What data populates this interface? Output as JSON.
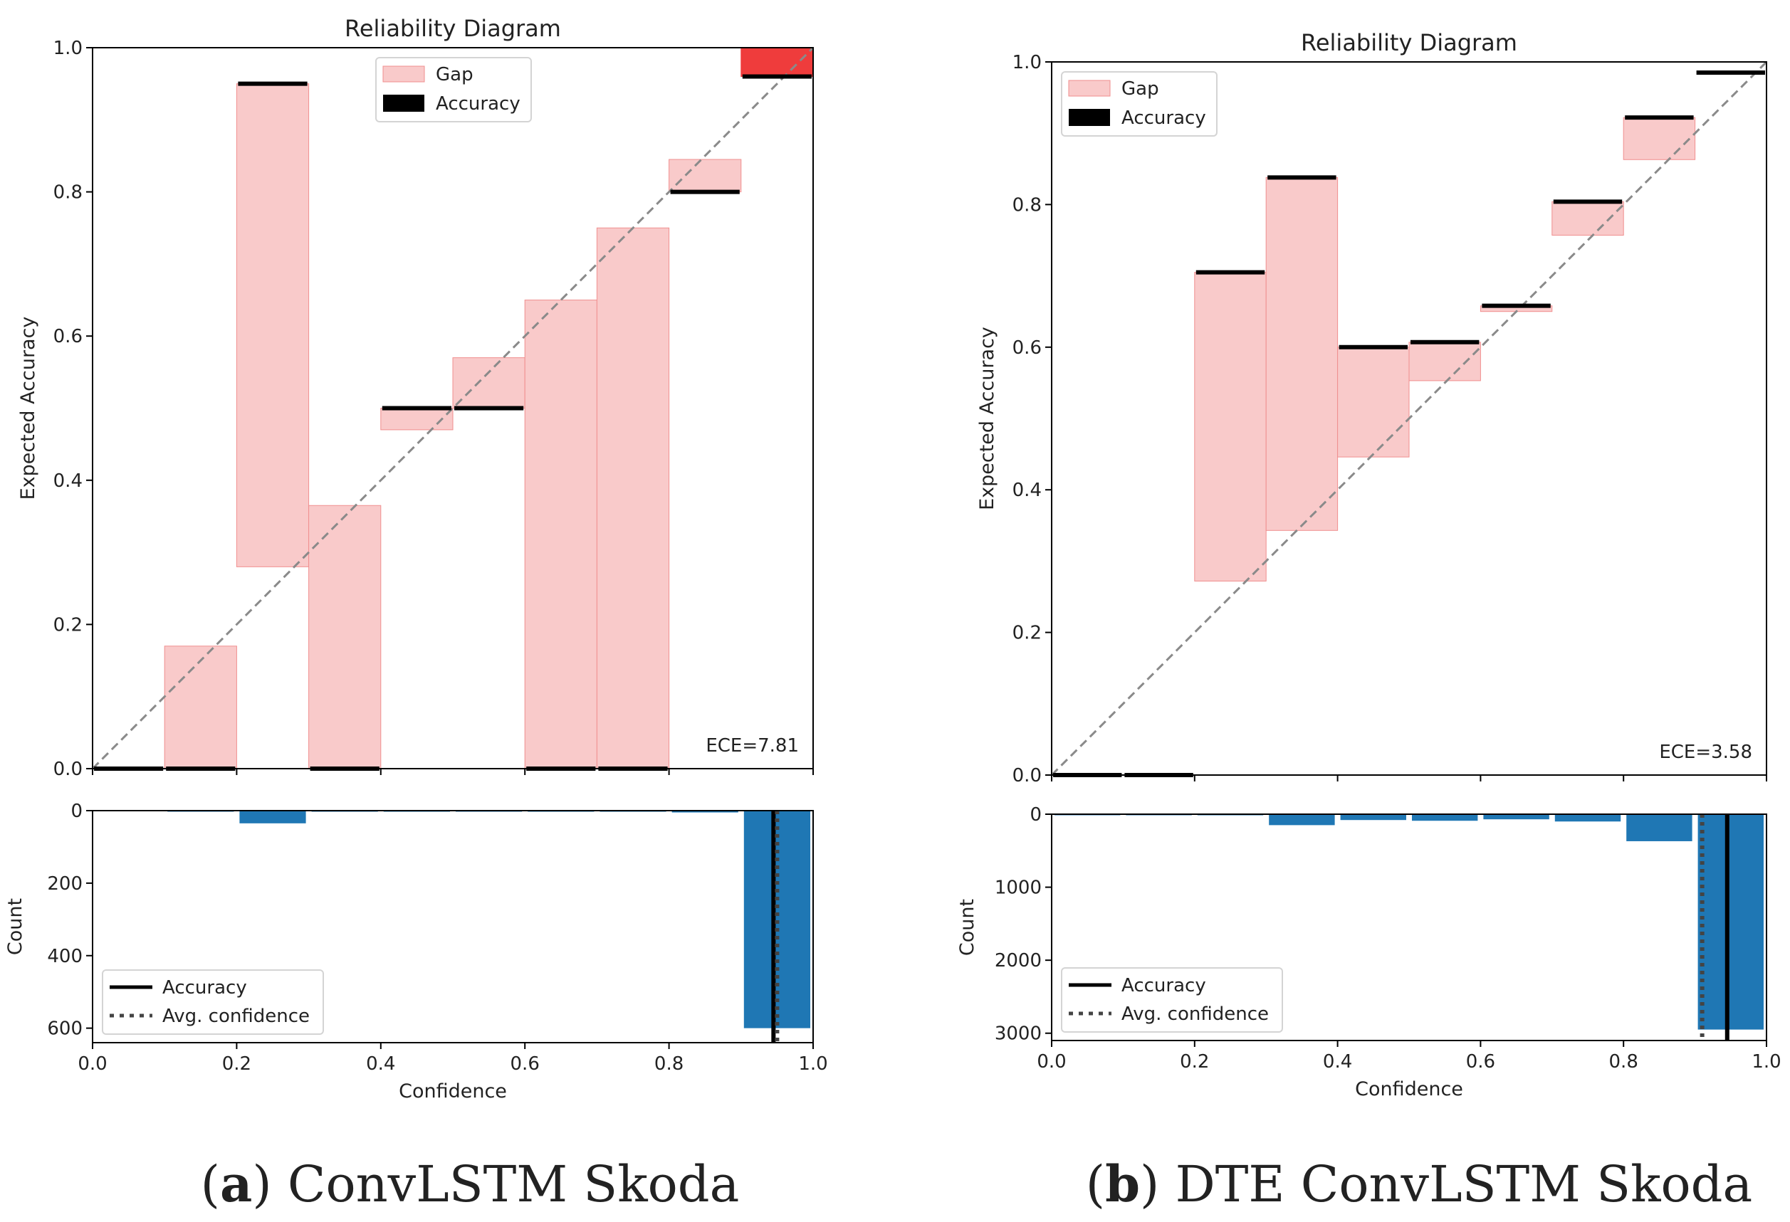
{
  "chart_data": [
    {
      "id": "a",
      "type": "bar",
      "reliability": {
        "title": "Reliability Diagram",
        "xlabel": "",
        "ylabel": "Expected Accuracy",
        "xlim": [
          0.0,
          1.0
        ],
        "ylim": [
          0.0,
          1.0
        ],
        "yticks": [
          "0.0",
          "0.2",
          "0.4",
          "0.6",
          "0.8",
          "1.0"
        ],
        "bins": [
          {
            "x0": 0.0,
            "x1": 0.1,
            "accuracy": 0.0,
            "avg_conf": 0.0
          },
          {
            "x0": 0.1,
            "x1": 0.2,
            "accuracy": 0.0,
            "avg_conf": 0.17
          },
          {
            "x0": 0.2,
            "x1": 0.3,
            "accuracy": 0.95,
            "avg_conf": 0.28
          },
          {
            "x0": 0.3,
            "x1": 0.4,
            "accuracy": 0.0,
            "avg_conf": 0.365
          },
          {
            "x0": 0.4,
            "x1": 0.5,
            "accuracy": 0.5,
            "avg_conf": 0.47
          },
          {
            "x0": 0.5,
            "x1": 0.6,
            "accuracy": 0.5,
            "avg_conf": 0.57
          },
          {
            "x0": 0.6,
            "x1": 0.7,
            "accuracy": 0.0,
            "avg_conf": 0.65
          },
          {
            "x0": 0.7,
            "x1": 0.8,
            "accuracy": 0.0,
            "avg_conf": 0.75
          },
          {
            "x0": 0.8,
            "x1": 0.9,
            "accuracy": 0.8,
            "avg_conf": 0.845
          },
          {
            "x0": 0.9,
            "x1": 1.0,
            "accuracy": 0.96,
            "avg_conf": 1.0,
            "highlight": true
          }
        ],
        "legend": {
          "position": "top-center",
          "gap": "Gap",
          "accuracy": "Accuracy"
        },
        "ece_label": "ECE=7.81"
      },
      "histogram": {
        "xlabel": "Confidence",
        "ylabel": "Count",
        "xticks": [
          "0.0",
          "0.2",
          "0.4",
          "0.6",
          "0.8",
          "1.0"
        ],
        "yticks": [
          "0",
          "200",
          "400",
          "600"
        ],
        "ytick_values": [
          0,
          200,
          400,
          600
        ],
        "ylim": [
          0,
          640
        ],
        "counts": [
          0,
          2,
          35,
          2,
          3,
          2,
          3,
          3,
          5,
          600
        ],
        "accuracy_line": 0.945,
        "avg_conf_line": 0.95,
        "legend": {
          "position": "lower-left",
          "accuracy": "Accuracy",
          "avg_conf": "Avg. confidence"
        }
      },
      "caption": {
        "letter": "a",
        "text": "ConvLSTM Skoda"
      }
    },
    {
      "id": "b",
      "type": "bar",
      "reliability": {
        "title": "Reliability Diagram",
        "xlabel": "",
        "ylabel": "Expected Accuracy",
        "xlim": [
          0.0,
          1.0
        ],
        "ylim": [
          0.0,
          1.0
        ],
        "yticks": [
          "0.0",
          "0.2",
          "0.4",
          "0.6",
          "0.8",
          "1.0"
        ],
        "bins": [
          {
            "x0": 0.0,
            "x1": 0.1,
            "accuracy": 0.0,
            "avg_conf": 0.0
          },
          {
            "x0": 0.1,
            "x1": 0.2,
            "accuracy": 0.0,
            "avg_conf": 0.0
          },
          {
            "x0": 0.2,
            "x1": 0.3,
            "accuracy": 0.705,
            "avg_conf": 0.272
          },
          {
            "x0": 0.3,
            "x1": 0.4,
            "accuracy": 0.838,
            "avg_conf": 0.343
          },
          {
            "x0": 0.4,
            "x1": 0.5,
            "accuracy": 0.6,
            "avg_conf": 0.446
          },
          {
            "x0": 0.5,
            "x1": 0.6,
            "accuracy": 0.607,
            "avg_conf": 0.553
          },
          {
            "x0": 0.6,
            "x1": 0.7,
            "accuracy": 0.658,
            "avg_conf": 0.65
          },
          {
            "x0": 0.7,
            "x1": 0.8,
            "accuracy": 0.804,
            "avg_conf": 0.757
          },
          {
            "x0": 0.8,
            "x1": 0.9,
            "accuracy": 0.922,
            "avg_conf": 0.863
          },
          {
            "x0": 0.9,
            "x1": 1.0,
            "accuracy": 0.985,
            "avg_conf": 0.985
          }
        ],
        "legend": {
          "position": "top-left",
          "gap": "Gap",
          "accuracy": "Accuracy"
        },
        "ece_label": "ECE=3.58"
      },
      "histogram": {
        "xlabel": "Confidence",
        "ylabel": "Count",
        "xticks": [
          "0.0",
          "0.2",
          "0.4",
          "0.6",
          "0.8",
          "1.0"
        ],
        "yticks": [
          "0",
          "1000",
          "2000",
          "3000"
        ],
        "ytick_values": [
          0,
          1000,
          2000,
          3000
        ],
        "ylim": [
          0,
          3100
        ],
        "counts": [
          2,
          2,
          15,
          150,
          80,
          90,
          70,
          100,
          370,
          2950
        ],
        "accuracy_line": 0.945,
        "avg_conf_line": 0.91,
        "legend": {
          "position": "lower-left",
          "accuracy": "Accuracy",
          "avg_conf": "Avg. confidence"
        }
      },
      "caption": {
        "letter": "b",
        "text": "DTE ConvLSTM Skoda"
      }
    }
  ],
  "colors": {
    "gap_fill": "#f9caca",
    "gap_edge": "#f08f8f",
    "highlight_fill": "#ef3c3c",
    "accuracy": "#000000",
    "diagonal": "#8a8a8a",
    "hist_bar": "#1f77b4",
    "avg_line": "#444444"
  }
}
